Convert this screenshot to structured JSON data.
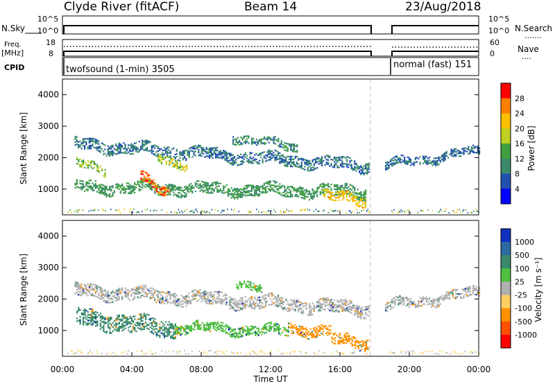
{
  "header": {
    "station": "Clyde River (fitACF)",
    "beam": "Beam 14",
    "date": "23/Aug/2018"
  },
  "panels": {
    "nsky_label": "N.Sky",
    "nsearch_label": "N.Search",
    "nsearch_dots": "·······",
    "freq_label_1": "Freq.",
    "freq_label_2": "[MHz]",
    "nave_label": "Nave",
    "nave_dots": "····",
    "cpid_label": "CPID",
    "cpid_1": "twofsound (1-min) 3505",
    "cpid_2": "normal (fast) 151",
    "nsky_ticks": [
      "10^5",
      "10^0"
    ],
    "nsearch_ticks": [
      "10^5",
      "10^0"
    ],
    "freq_ticks": [
      "18",
      "8"
    ],
    "nave_ticks": [
      "60",
      "0"
    ]
  },
  "chart_data": [
    {
      "type": "heatmap",
      "name": "power",
      "ylabel": "Slant Range [km]",
      "yticks": [
        "4000",
        "3000",
        "2000",
        "1000"
      ],
      "ylim": [
        180,
        4500
      ],
      "xlim": [
        0,
        24
      ],
      "data_gap_hours": [
        17.75,
        18.75
      ],
      "colorbar": {
        "label": "Power [dB]",
        "ticks": [
          "28",
          "24",
          "20",
          "16",
          "12",
          "8",
          "4"
        ],
        "colors": [
          "#ff0000",
          "#ff8000",
          "#ffc000",
          "#c0d020",
          "#40a040",
          "#3a8a6a",
          "#2050b0",
          "#0000ff"
        ]
      },
      "echo_bands": [
        {
          "t_start": 0.7,
          "t_end": 17.7,
          "range_start": 2400,
          "range_end": 1700,
          "thickness": 320,
          "level": 8
        },
        {
          "t_start": 18.6,
          "t_end": 24,
          "range_start": 1750,
          "range_end": 2200,
          "thickness": 260,
          "level": 8
        },
        {
          "t_start": 0.7,
          "t_end": 17.5,
          "range_start": 1050,
          "range_end": 900,
          "thickness": 340,
          "level": 12
        },
        {
          "t_start": 4.5,
          "t_end": 6.2,
          "range_start": 1300,
          "range_end": 850,
          "thickness": 280,
          "level": 26
        },
        {
          "t_start": 0.8,
          "t_end": 2.5,
          "range_start": 1800,
          "range_end": 1600,
          "thickness": 260,
          "level": 16
        },
        {
          "t_start": 5.5,
          "t_end": 7.2,
          "range_start": 2000,
          "range_end": 1750,
          "thickness": 260,
          "level": 18
        },
        {
          "t_start": 15.0,
          "t_end": 17.5,
          "range_start": 750,
          "range_end": 650,
          "thickness": 300,
          "level": 22
        },
        {
          "t_start": 9.8,
          "t_end": 13.5,
          "range_start": 2650,
          "range_end": 2300,
          "thickness": 250,
          "level": 10
        }
      ]
    },
    {
      "type": "heatmap",
      "name": "velocity",
      "ylabel": "Slant Range [km]",
      "xlabel": "Time UT",
      "yticks": [
        "4000",
        "3000",
        "2000",
        "1000"
      ],
      "xticks": [
        "00:00",
        "04:00",
        "08:00",
        "12:00",
        "16:00",
        "20:00",
        "00:00"
      ],
      "ylim": [
        180,
        4500
      ],
      "xlim": [
        0,
        24
      ],
      "colorbar": {
        "label": "Velocity [m s⁻¹]",
        "ticks": [
          "1000",
          "500",
          "100",
          "25",
          "-25",
          "-100",
          "-500",
          "-1000"
        ],
        "colors": [
          "#1030c0",
          "#2a6aa0",
          "#3a8a6a",
          "#50c040",
          "#b0b0b0",
          "#ffd060",
          "#ff9000",
          "#ff5000",
          "#ff0000"
        ]
      },
      "echo_bands": [
        {
          "t_start": 0.7,
          "t_end": 17.7,
          "range_start": 2250,
          "range_end": 1650,
          "thickness": 380,
          "class": "ground"
        },
        {
          "t_start": 18.6,
          "t_end": 24,
          "range_start": 1750,
          "range_end": 2200,
          "thickness": 300,
          "class": "ground"
        },
        {
          "t_start": 0.8,
          "t_end": 6.5,
          "range_start": 1400,
          "range_end": 1000,
          "thickness": 500,
          "class": "toward_med"
        },
        {
          "t_start": 6.5,
          "t_end": 13.0,
          "range_start": 1100,
          "range_end": 950,
          "thickness": 300,
          "class": "toward_low"
        },
        {
          "t_start": 13.0,
          "t_end": 15.5,
          "range_start": 1100,
          "range_end": 900,
          "thickness": 350,
          "class": "away_med"
        },
        {
          "t_start": 15.5,
          "t_end": 17.6,
          "range_start": 700,
          "range_end": 600,
          "thickness": 350,
          "class": "away_med"
        },
        {
          "t_start": 10.0,
          "t_end": 11.5,
          "range_start": 2550,
          "range_end": 2300,
          "thickness": 250,
          "class": "toward_low"
        }
      ]
    }
  ]
}
